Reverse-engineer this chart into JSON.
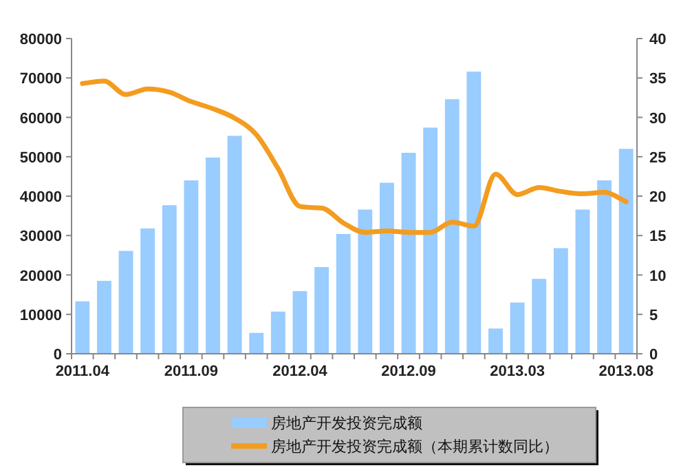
{
  "chart_data": {
    "type": "bar",
    "categories": [
      "2011.04",
      null,
      null,
      null,
      null,
      "2011.09",
      null,
      null,
      null,
      null,
      "2012.04",
      null,
      null,
      null,
      null,
      "2012.09",
      null,
      null,
      null,
      null,
      "2013.03",
      null,
      null,
      null,
      null,
      "2013.08"
    ],
    "series": [
      {
        "name": "房地产开发投资完成额",
        "color": "#99ccff",
        "values": [
          13300,
          18500,
          26100,
          31800,
          37700,
          44000,
          49800,
          55300,
          5300,
          10700,
          15900,
          22000,
          30400,
          36600,
          43400,
          51000,
          57400,
          64600,
          71600,
          6400,
          13000,
          19000,
          26800,
          36600,
          44000,
          52000
        ]
      },
      {
        "name": "房地产开发投资完成额（本期累计数同比）",
        "type": "line",
        "axis": "y2",
        "color": "#f39c1f",
        "values": [
          34.3,
          34.6,
          32.9,
          33.6,
          33.2,
          32.0,
          31.1,
          29.9,
          27.8,
          23.5,
          18.7,
          18.5,
          16.6,
          15.4,
          15.6,
          15.4,
          15.4,
          16.7,
          16.2,
          22.8,
          20.2,
          21.1,
          20.6,
          20.3,
          20.5,
          19.3
        ]
      }
    ],
    "ylim": [
      0,
      80000
    ],
    "yticks": [
      0,
      10000,
      20000,
      30000,
      40000,
      50000,
      60000,
      70000,
      80000
    ],
    "y2lim": [
      0,
      40
    ],
    "y2ticks": [
      0,
      5,
      10,
      15,
      20,
      25,
      30,
      35,
      40
    ],
    "legend": "bottom",
    "grid": false
  }
}
